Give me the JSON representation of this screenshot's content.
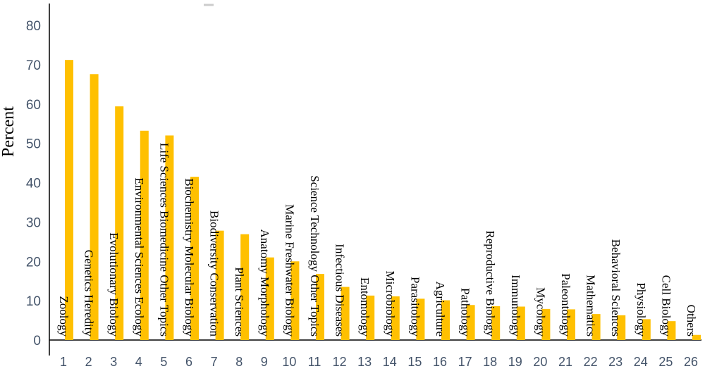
{
  "chart_data": {
    "type": "bar",
    "ylabel": "Percent",
    "xlabel": "",
    "ylim": [
      0,
      80
    ],
    "yticks": [
      "0",
      "10",
      "20",
      "30",
      "40",
      "50",
      "60",
      "70",
      "80"
    ],
    "categories": [
      "1",
      "2",
      "3",
      "4",
      "5",
      "6",
      "7",
      "8",
      "9",
      "10",
      "11",
      "12",
      "13",
      "14",
      "15",
      "16",
      "17",
      "18",
      "19",
      "20",
      "21",
      "22",
      "23",
      "24",
      "25",
      "26"
    ],
    "values": [
      71.2,
      67.6,
      59.4,
      53.2,
      52.0,
      41.5,
      27.8,
      26.9,
      21.0,
      20.0,
      16.8,
      13.5,
      11.3,
      11.1,
      10.5,
      10.1,
      8.9,
      8.6,
      8.5,
      7.9,
      7.8,
      6.6,
      6.3,
      5.3,
      4.8,
      1.3
    ],
    "bar_labels": [
      "Zoology",
      "Genetics Heredity",
      "Evolutionary Biology",
      "Environmental Sciences Ecology",
      "Life Sciences Biomedicine Other Topics",
      "Biochemistry Molecular Biology",
      "Biodiversity Conservation",
      "Plant Sciences",
      "Anatomy Morphology",
      "Marine Freshwater Biology",
      "Science Technology Other Topics",
      "Infectious Diseases",
      "Entomology",
      "Microbiology",
      "Parasitology",
      "Agriculture",
      "Pathology",
      "Reproductive Biology",
      "Immunology",
      "Mycology",
      "Paleontology",
      "Mathematics",
      "Behavioral Sciences",
      "Physiology",
      "Cell Biology",
      "Others"
    ],
    "bar_color": "#FFC000",
    "grid": false,
    "legend": "none"
  }
}
